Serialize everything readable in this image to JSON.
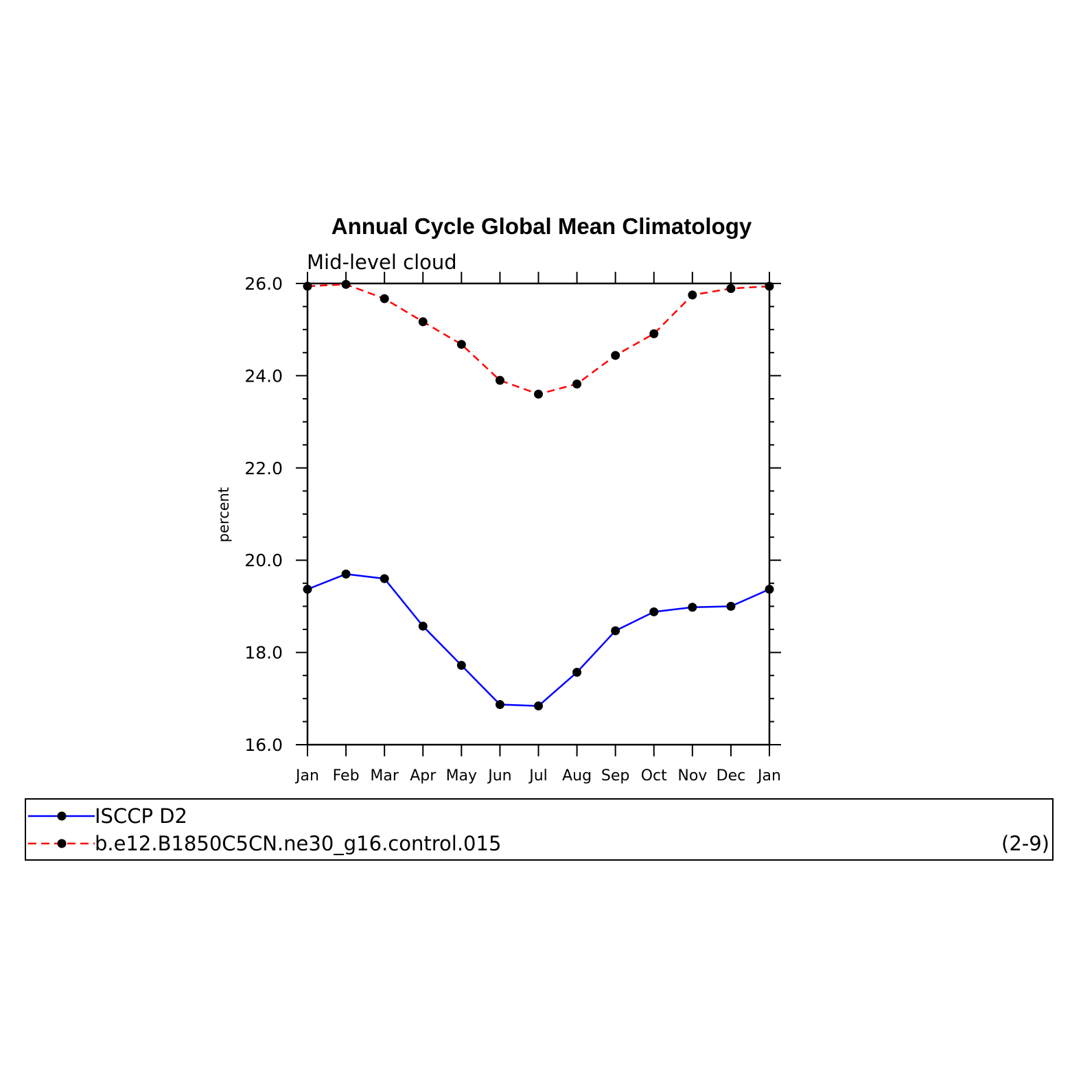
{
  "chart_data": {
    "type": "line",
    "title": "Annual Cycle Global Mean Climatology",
    "subtitle": "Mid-level cloud",
    "xlabel": "",
    "ylabel": "percent",
    "categories": [
      "Jan",
      "Feb",
      "Mar",
      "Apr",
      "May",
      "Jun",
      "Jul",
      "Aug",
      "Sep",
      "Oct",
      "Nov",
      "Dec",
      "Jan"
    ],
    "ylim": [
      16.0,
      26.0
    ],
    "yticks": [
      "16.0",
      "18.0",
      "20.0",
      "22.0",
      "24.0",
      "26.0"
    ],
    "grid": false,
    "legend_position": "bottom",
    "panel_label": "(2-9)",
    "series": [
      {
        "name": "ISCCP D2",
        "color": "#0000ff",
        "style": "solid",
        "marker": "dot",
        "values": [
          19.37,
          19.7,
          19.6,
          18.57,
          17.72,
          16.87,
          16.84,
          17.57,
          18.47,
          18.88,
          18.98,
          19.0,
          19.37
        ]
      },
      {
        "name": "b.e12.B1850C5CN.ne30_g16.control.015",
        "color": "#ff0000",
        "style": "dashed",
        "marker": "dot",
        "values": [
          25.94,
          25.98,
          25.67,
          25.17,
          24.68,
          23.9,
          23.6,
          23.82,
          24.44,
          24.91,
          25.75,
          25.89,
          25.94
        ]
      }
    ]
  }
}
